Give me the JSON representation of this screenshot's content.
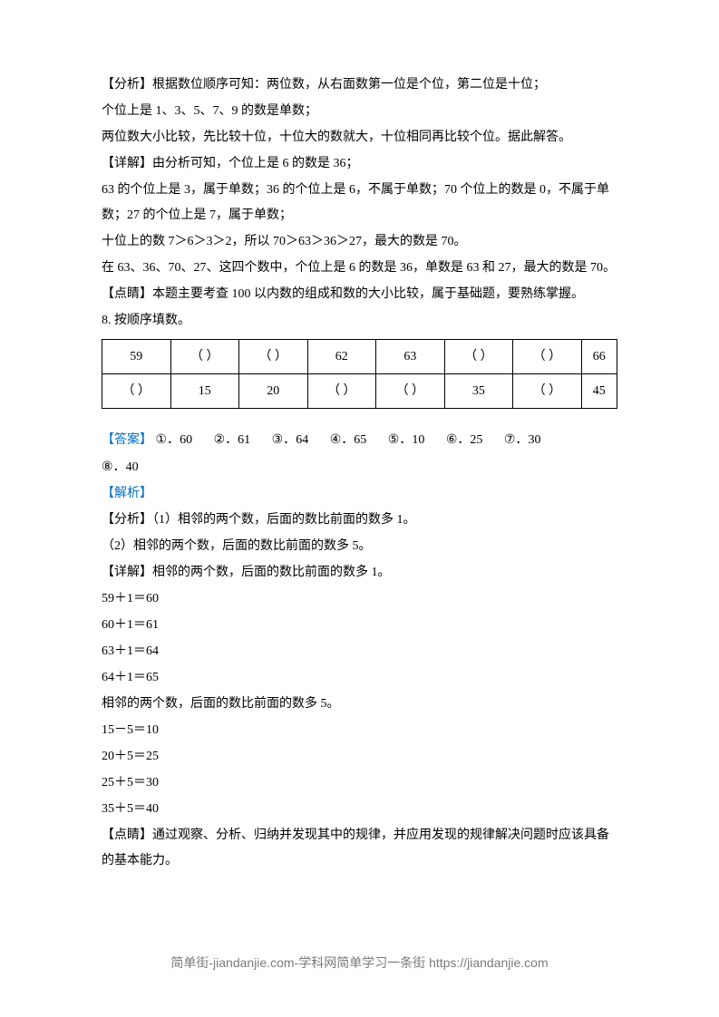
{
  "para1": "【分析】根据数位顺序可知：两位数，从右面数第一位是个位，第二位是十位；",
  "para2": "个位上是 1、3、5、7、9 的数是单数；",
  "para3": "两位数大小比较，先比较十位，十位大的数就大，十位相同再比较个位。据此解答。",
  "para4": "【详解】由分析可知，个位上是 6 的数是 36；",
  "para5": "63 的个位上是 3，属于单数；36 的个位上是 6，不属于单数；70 个位上的数是 0，不属于单数；27 的个位上是 7，属于单数；",
  "para6": "十位上的数 7＞6＞3＞2，所以 70＞63＞36＞27，最大的数是 70。",
  "para7": "在 63、36、70、27、这四个数中，个位上是 6 的数是 36，单数是 63 和 27，最大的数是 70。",
  "para8": "【点睛】本题主要考查 100 以内数的组成和数的大小比较，属于基础题，要熟练掌握。",
  "para9": "8. 按顺序填数。",
  "table": {
    "columns": 8,
    "row1": [
      "59",
      "（   ）",
      "（   ）",
      "62",
      "63",
      "（   ）",
      "（   ）",
      "66"
    ],
    "row2": [
      "（   ）",
      "15",
      "20",
      "（   ）",
      "（   ）",
      "35",
      "（   ）",
      "45"
    ]
  },
  "answerLabel": "【答案】",
  "answers": [
    {
      "num": "①．",
      "val": "60"
    },
    {
      "num": "②．",
      "val": "61"
    },
    {
      "num": "③．",
      "val": "64"
    },
    {
      "num": "④．",
      "val": "65"
    },
    {
      "num": "⑤．",
      "val": "10"
    },
    {
      "num": "⑥．",
      "val": "25"
    },
    {
      "num": "⑦．",
      "val": "30"
    }
  ],
  "answer8": {
    "num": "⑧．",
    "val": "40"
  },
  "analysisLabel": "【解析】",
  "analysis1": "【分析】（1）相邻的两个数，后面的数比前面的数多 1。",
  "analysis2": "（2）相邻的两个数，后面的数比前面的数多 5。",
  "detail1": "【详解】相邻的两个数，后面的数比前面的数多 1。",
  "calc1": "59＋1＝60",
  "calc2": "60＋1＝61",
  "calc3": "63＋1＝64",
  "calc4": "64＋1＝65",
  "detail2": "相邻的两个数，后面的数比前面的数多 5。",
  "calc5": "15－5＝10",
  "calc6": "20＋5＝25",
  "calc7": "25＋5＝30",
  "calc8": "35＋5＝40",
  "point": "【点睛】通过观察、分析、归纳并发现其中的规律，并应用发现的规律解决问题时应该具备的基本能力。",
  "footer": "简单街-jiandanjie.com-学科网简单学习一条街 https://jiandanjie.com"
}
